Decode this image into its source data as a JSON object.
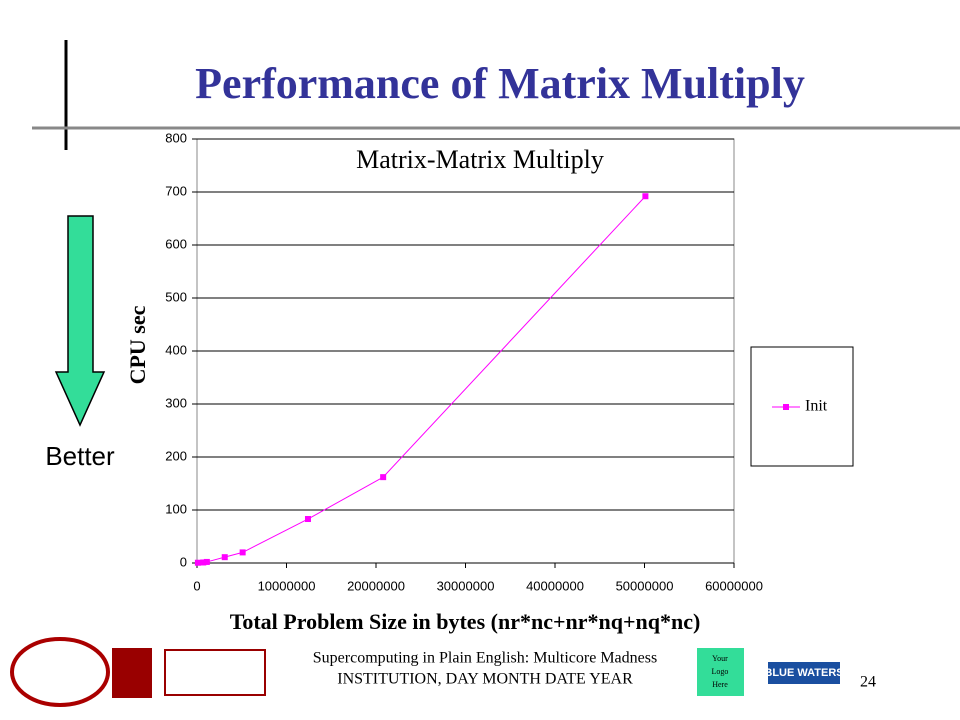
{
  "slide": {
    "title": "Performance of Matrix Multiply",
    "side_label": "Better",
    "footer": [
      "Supercomputing in Plain English: Multicore Madness",
      "INSTITUTION, DAY MONTH DATE YEAR"
    ],
    "logo_placeholder": [
      "Your",
      "Logo",
      "Here"
    ],
    "partner_logo": "BLUE WATERS",
    "page_number": "24"
  },
  "chart_data": {
    "type": "line",
    "title": "Matrix-Matrix Multiply",
    "x_label": "Total Problem Size in bytes (nr*nc+nr*nq+nq*nc)",
    "y_label": "CPU sec",
    "x": [
      100000,
      700000,
      1100000,
      3100000,
      5100000,
      12400000,
      20800000,
      50100000
    ],
    "series": [
      {
        "name": "Init",
        "color": "#ff00ff",
        "values": [
          0.5,
          1,
          2,
          11,
          20,
          83,
          162,
          692
        ]
      }
    ],
    "xlim": [
      0,
      60000000
    ],
    "xticks": [
      0,
      10000000,
      20000000,
      30000000,
      40000000,
      50000000,
      60000000
    ],
    "ylim": [
      0,
      800
    ],
    "yticks": [
      0,
      100,
      200,
      300,
      400,
      500,
      600,
      700,
      800
    ],
    "grid": true,
    "legend": "right"
  }
}
